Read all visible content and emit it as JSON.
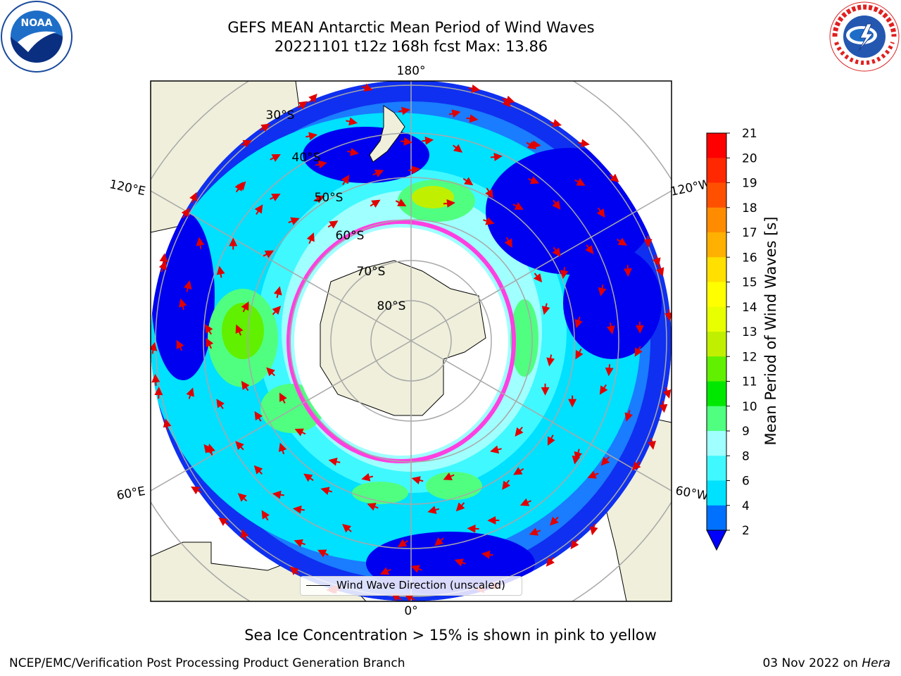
{
  "title": {
    "line1": "GEFS MEAN Antarctic Mean Period of Wind Waves",
    "line2": "20221101 t12z 168h fcst   Max: 13.86"
  },
  "logos": {
    "left": {
      "name": "noara-logo",
      "text": "NOAA"
    },
    "right": {
      "name": "nws-logo",
      "text": "NATIONAL WEATHER SERVICE"
    }
  },
  "map": {
    "projection": "south-polar-stereographic",
    "longitude_labels": [
      "180°",
      "120°E",
      "120°W",
      "60°E",
      "60°W",
      "0°"
    ],
    "latitude_labels": [
      "30°S",
      "40°S",
      "50°S",
      "60°S",
      "70°S",
      "80°S"
    ],
    "legend": "Wind Wave Direction (unscaled)"
  },
  "colorbar": {
    "title": "Mean Period of Wind Waves [s]",
    "ticks": [
      "2",
      "4",
      "6",
      "8",
      "9",
      "10",
      "11",
      "12",
      "13",
      "14",
      "15",
      "16",
      "17",
      "18",
      "19",
      "20",
      "21"
    ],
    "colors": [
      "#0000ff",
      "#0070ff",
      "#00e0ff",
      "#40f8ff",
      "#a0ffff",
      "#50ff80",
      "#00e800",
      "#60f000",
      "#c0f000",
      "#e8ff00",
      "#ffff00",
      "#ffe000",
      "#ffb000",
      "#ff8c00",
      "#ff5000",
      "#ff2800",
      "#ff0000"
    ]
  },
  "caption": "Sea Ice Concentration > 15% is shown in pink to yellow",
  "footer": {
    "left": "NCEP/EMC/Verification Post Processing Product Generation Branch",
    "right_date": "03 Nov 2022 on ",
    "right_machine": "Hera"
  }
}
